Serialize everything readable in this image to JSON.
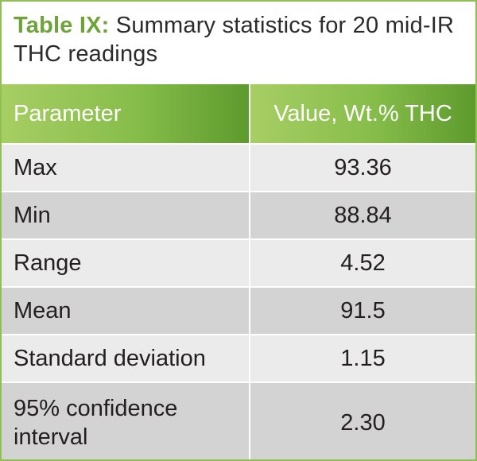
{
  "caption": {
    "label": "Table IX:",
    "text": "Summary statistics for 20 mid-IR THC readings"
  },
  "table": {
    "headers": [
      "Parameter",
      "Value, Wt.% THC"
    ],
    "rows": [
      {
        "parameter": "Max",
        "value": "93.36"
      },
      {
        "parameter": "Min",
        "value": "88.84"
      },
      {
        "parameter": "Range",
        "value": "4.52"
      },
      {
        "parameter": "Mean",
        "value": "91.5"
      },
      {
        "parameter": "Standard deviation",
        "value": "1.15"
      },
      {
        "parameter": "95% confidence interval",
        "value": "2.30"
      }
    ]
  },
  "colors": {
    "accent": "#6da338",
    "header_gradient_start": "#a7ce63",
    "header_gradient_end": "#5d9a2d",
    "row_light": "#ebebeb",
    "row_dark": "#d3d3d3"
  }
}
